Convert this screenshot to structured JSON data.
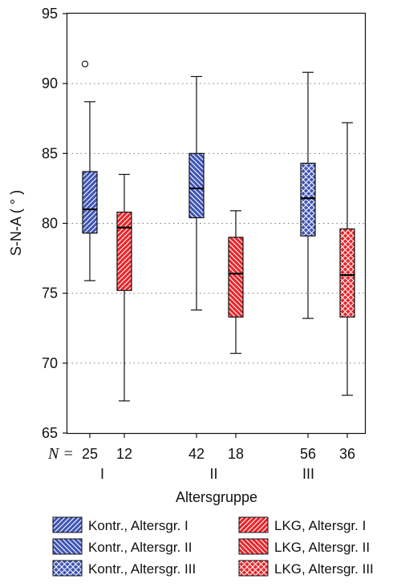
{
  "colors": {
    "kontr": "#3f55b5",
    "lkg": "#e8262b"
  },
  "chart_data": {
    "type": "box",
    "ylabel": "S-N-A ( ° )",
    "xlabel": "Altersgruppe",
    "ylim": [
      65,
      95
    ],
    "yticks": [
      65,
      70,
      75,
      80,
      85,
      90,
      95
    ],
    "grid": "horizontal-dotted at 70, 75, 80, 85, 90",
    "n_label": "N =",
    "groups": [
      "I",
      "II",
      "III"
    ],
    "series": [
      {
        "name": "Kontr., Altersgr. I",
        "group": "I",
        "color": "kontr",
        "hatch": "diagonal-right",
        "n": "25",
        "whisker_low": 75.9,
        "q1": 79.3,
        "median": 81.0,
        "q3": 83.7,
        "whisker_high": 88.7,
        "outliers": [
          91.4
        ]
      },
      {
        "name": "LKG, Altersgr. I",
        "group": "I",
        "color": "lkg",
        "hatch": "diagonal-right",
        "n": "12",
        "whisker_low": 67.3,
        "q1": 75.2,
        "median": 79.7,
        "q3": 80.8,
        "whisker_high": 83.5,
        "outliers": []
      },
      {
        "name": "Kontr., Altersgr. II",
        "group": "II",
        "color": "kontr",
        "hatch": "diagonal-left",
        "n": "42",
        "whisker_low": 73.8,
        "q1": 80.4,
        "median": 82.5,
        "q3": 85.0,
        "whisker_high": 90.5,
        "outliers": []
      },
      {
        "name": "LKG, Altersgr. II",
        "group": "II",
        "color": "lkg",
        "hatch": "diagonal-left",
        "n": "18",
        "whisker_low": 70.7,
        "q1": 73.3,
        "median": 76.4,
        "q3": 79.0,
        "whisker_high": 80.9,
        "outliers": []
      },
      {
        "name": "Kontr., Altersgr. III",
        "group": "III",
        "color": "kontr",
        "hatch": "cross",
        "n": "56",
        "whisker_low": 73.2,
        "q1": 79.1,
        "median": 81.8,
        "q3": 84.3,
        "whisker_high": 90.8,
        "outliers": []
      },
      {
        "name": "LKG, Altersgr. III",
        "group": "III",
        "color": "lkg",
        "hatch": "cross",
        "n": "36",
        "whisker_low": 67.7,
        "q1": 73.3,
        "median": 76.3,
        "q3": 79.6,
        "whisker_high": 87.2,
        "outliers": []
      }
    ]
  }
}
